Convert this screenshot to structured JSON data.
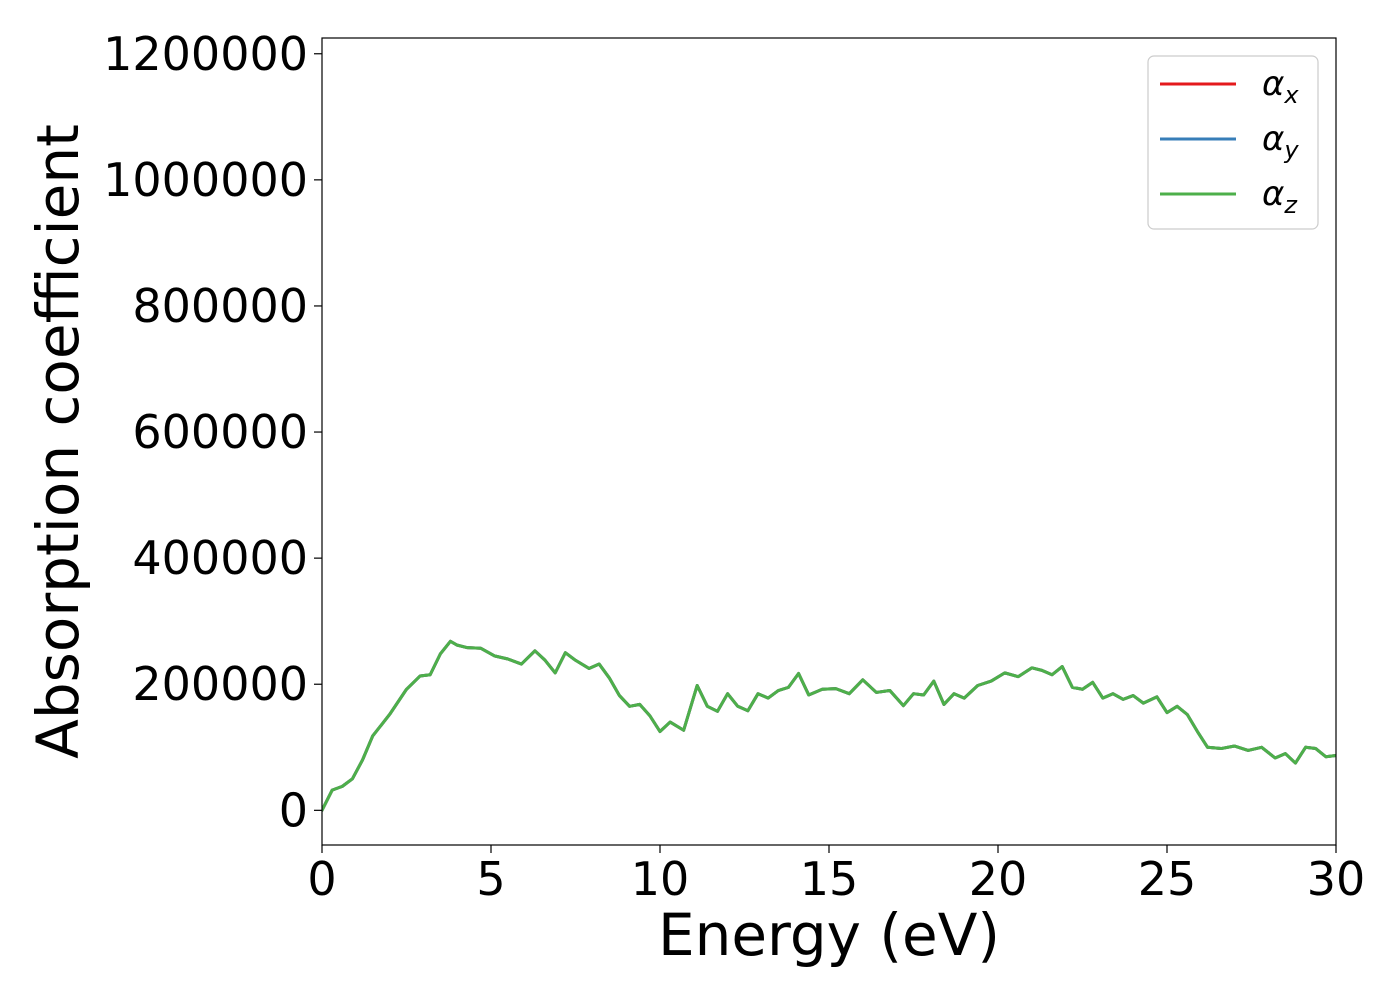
{
  "chart_data": {
    "type": "line",
    "title": "",
    "xlabel": "Energy (eV)",
    "ylabel": "Absorption coefficient",
    "xlim": [
      0,
      30
    ],
    "ylim": [
      -55000,
      1225000
    ],
    "xticks": [
      0,
      5,
      10,
      15,
      20,
      25,
      30
    ],
    "xtick_labels": [
      "0",
      "5",
      "10",
      "15",
      "20",
      "25",
      "30"
    ],
    "yticks": [
      0,
      200000,
      400000,
      600000,
      800000,
      1000000,
      1200000
    ],
    "ytick_labels": [
      "0",
      "200000",
      "400000",
      "600000",
      "800000",
      "1000000",
      "1200000"
    ],
    "grid": false,
    "legend_position": "top-right",
    "x": [
      0,
      0.3,
      0.6,
      0.9,
      1.2,
      1.5,
      2.0,
      2.5,
      2.9,
      3.2,
      3.5,
      3.8,
      4.0,
      4.3,
      4.7,
      5.1,
      5.5,
      5.9,
      6.3,
      6.6,
      6.9,
      7.2,
      7.5,
      7.9,
      8.2,
      8.5,
      8.8,
      9.1,
      9.4,
      9.7,
      10.0,
      10.3,
      10.7,
      11.1,
      11.4,
      11.7,
      12.0,
      12.3,
      12.6,
      12.9,
      13.2,
      13.5,
      13.8,
      14.1,
      14.4,
      14.8,
      15.2,
      15.6,
      16.0,
      16.4,
      16.8,
      17.2,
      17.5,
      17.8,
      18.1,
      18.4,
      18.7,
      19.0,
      19.4,
      19.8,
      20.2,
      20.6,
      21.0,
      21.3,
      21.6,
      21.9,
      22.2,
      22.5,
      22.8,
      23.1,
      23.4,
      23.7,
      24.0,
      24.3,
      24.7,
      25.0,
      25.3,
      25.6,
      25.9,
      26.2,
      26.6,
      27.0,
      27.4,
      27.8,
      28.2,
      28.5,
      28.8,
      29.1,
      29.4,
      29.7,
      30.0
    ],
    "series": [
      {
        "name": "α_x",
        "color": "#e41a1c",
        "values": [
          0,
          32000,
          38000,
          50000,
          80000,
          118000,
          152000,
          192000,
          213000,
          215000,
          248000,
          268000,
          262000,
          258000,
          257000,
          245000,
          240000,
          232000,
          253000,
          238000,
          218000,
          250000,
          238000,
          225000,
          232000,
          210000,
          182000,
          165000,
          168000,
          150000,
          125000,
          140000,
          127000,
          198000,
          165000,
          157000,
          185000,
          165000,
          158000,
          185000,
          178000,
          190000,
          195000,
          217000,
          183000,
          192000,
          193000,
          185000,
          207000,
          187000,
          190000,
          166000,
          185000,
          183000,
          205000,
          168000,
          185000,
          178000,
          198000,
          205000,
          218000,
          212000,
          226000,
          222000,
          215000,
          228000,
          195000,
          192000,
          203000,
          178000,
          185000,
          176000,
          182000,
          170000,
          180000,
          155000,
          165000,
          152000,
          125000,
          100000,
          98000,
          102000,
          95000,
          100000,
          83000,
          90000,
          75000,
          100000,
          98000,
          85000,
          87000
        ]
      },
      {
        "name": "α_y",
        "color": "#377eb8",
        "values": [
          0,
          32000,
          38000,
          50000,
          80000,
          118000,
          152000,
          192000,
          213000,
          215000,
          248000,
          268000,
          262000,
          258000,
          257000,
          245000,
          240000,
          232000,
          253000,
          238000,
          218000,
          250000,
          238000,
          225000,
          232000,
          210000,
          182000,
          165000,
          168000,
          150000,
          125000,
          140000,
          127000,
          198000,
          165000,
          157000,
          185000,
          165000,
          158000,
          185000,
          178000,
          190000,
          195000,
          217000,
          183000,
          192000,
          193000,
          185000,
          207000,
          187000,
          190000,
          166000,
          185000,
          183000,
          205000,
          168000,
          185000,
          178000,
          198000,
          205000,
          218000,
          212000,
          226000,
          222000,
          215000,
          228000,
          195000,
          192000,
          203000,
          178000,
          185000,
          176000,
          182000,
          170000,
          180000,
          155000,
          165000,
          152000,
          125000,
          100000,
          98000,
          102000,
          95000,
          100000,
          83000,
          90000,
          75000,
          100000,
          98000,
          85000,
          87000
        ]
      },
      {
        "name": "α_z",
        "color": "#4daf4a",
        "values": [
          0,
          32000,
          38000,
          50000,
          80000,
          118000,
          152000,
          192000,
          213000,
          215000,
          248000,
          268000,
          262000,
          258000,
          257000,
          245000,
          240000,
          232000,
          253000,
          238000,
          218000,
          250000,
          238000,
          225000,
          232000,
          210000,
          182000,
          165000,
          168000,
          150000,
          125000,
          140000,
          127000,
          198000,
          165000,
          157000,
          185000,
          165000,
          158000,
          185000,
          178000,
          190000,
          195000,
          217000,
          183000,
          192000,
          193000,
          185000,
          207000,
          187000,
          190000,
          166000,
          185000,
          183000,
          205000,
          168000,
          185000,
          178000,
          198000,
          205000,
          218000,
          212000,
          226000,
          222000,
          215000,
          228000,
          195000,
          192000,
          203000,
          178000,
          185000,
          176000,
          182000,
          170000,
          180000,
          155000,
          165000,
          152000,
          125000,
          100000,
          98000,
          102000,
          95000,
          100000,
          83000,
          90000,
          75000,
          100000,
          98000,
          85000,
          87000
        ]
      }
    ],
    "legend": [
      {
        "symbol": "α",
        "sub": "x",
        "color": "#e41a1c"
      },
      {
        "symbol": "α",
        "sub": "y",
        "color": "#377eb8"
      },
      {
        "symbol": "α",
        "sub": "z",
        "color": "#4daf4a"
      }
    ]
  }
}
